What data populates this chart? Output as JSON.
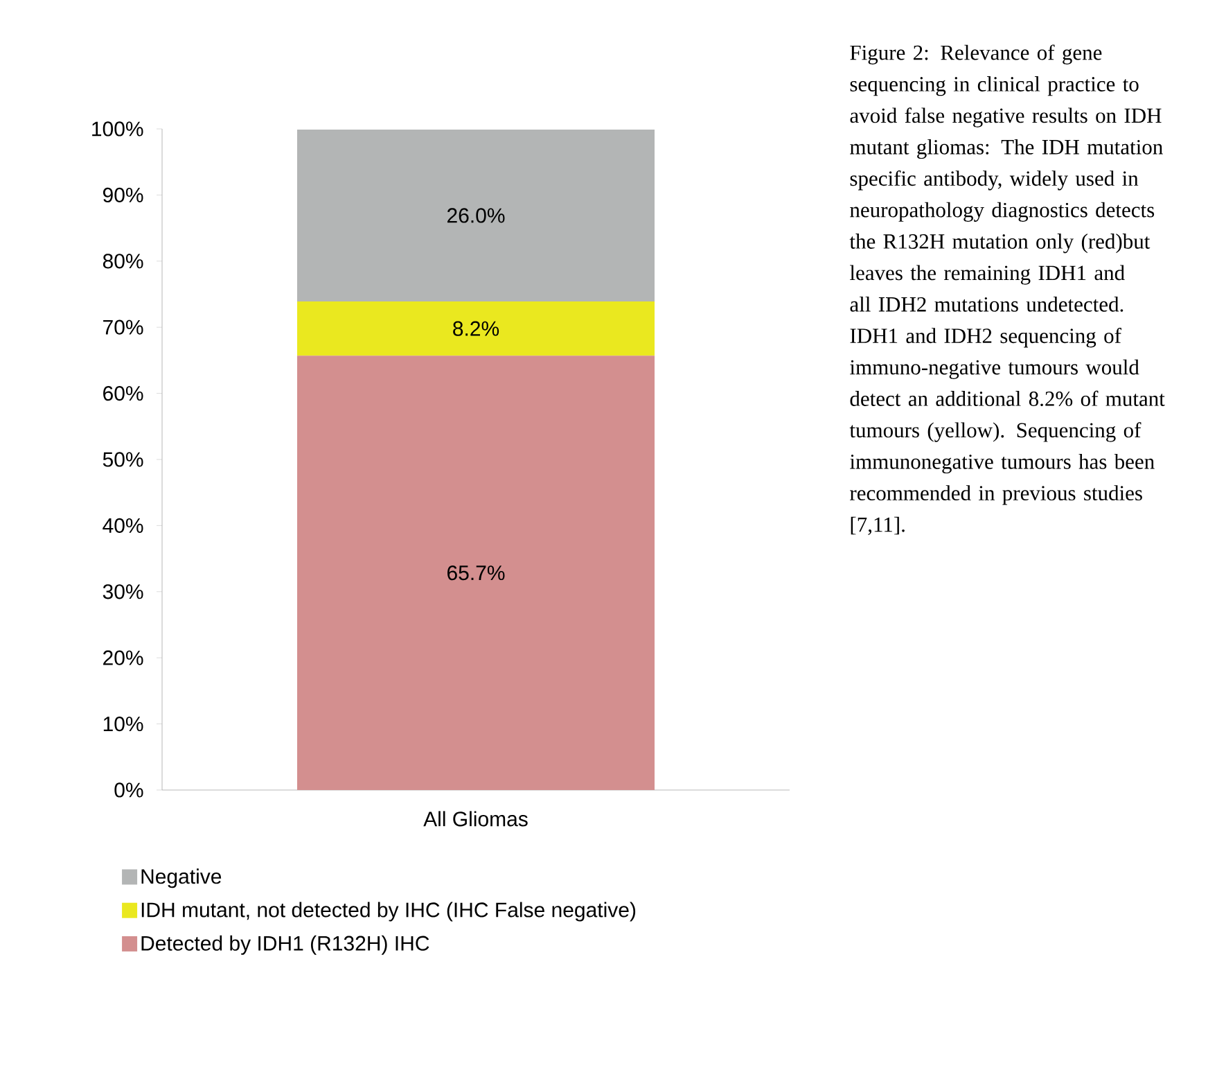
{
  "chart_data": {
    "type": "bar",
    "stacked": true,
    "categories": [
      "All Gliomas"
    ],
    "series": [
      {
        "name": "Detected by IDH1 (R132H) IHC",
        "color": "#d38f8f",
        "values": [
          65.7
        ],
        "value_labels": [
          "65.7%"
        ]
      },
      {
        "name": "IDH mutant, not detected by IHC (IHC False negative)",
        "color": "#eae81f",
        "values": [
          8.2
        ],
        "value_labels": [
          "8.2%"
        ]
      },
      {
        "name": "Negative",
        "color": "#b3b5b5",
        "values": [
          26.0
        ],
        "value_labels": [
          "26.0%"
        ]
      }
    ],
    "ylim": [
      0,
      100
    ],
    "yticks": [
      {
        "value": 0,
        "label": "0%"
      },
      {
        "value": 10,
        "label": "10%"
      },
      {
        "value": 20,
        "label": "20%"
      },
      {
        "value": 30,
        "label": "30%"
      },
      {
        "value": 40,
        "label": "40%"
      },
      {
        "value": 50,
        "label": "50%"
      },
      {
        "value": 60,
        "label": "60%"
      },
      {
        "value": 70,
        "label": "70%"
      },
      {
        "value": 80,
        "label": "80%"
      },
      {
        "value": 90,
        "label": "90%"
      },
      {
        "value": 100,
        "label": "100%"
      }
    ],
    "legend": "bottom",
    "grid": false,
    "annotations": [
      "Figure 2: Relevance of gene sequencing in clinical practice to avoid false negative results on IDH mutant gliomas: The IDH mutation specific antibody, widely used in neuropathology diagnostics detects the R132H mutation only (red)but leaves the remaining IDH1 and all IDH2 mutations undetected. IDH1 and IDH2 sequencing of immuno-negative tumours would detect an additional 8.2% of mutant tumours (yellow). Sequencing of immunonegative tumours has been recommended in previous studies [7,11]."
    ]
  }
}
